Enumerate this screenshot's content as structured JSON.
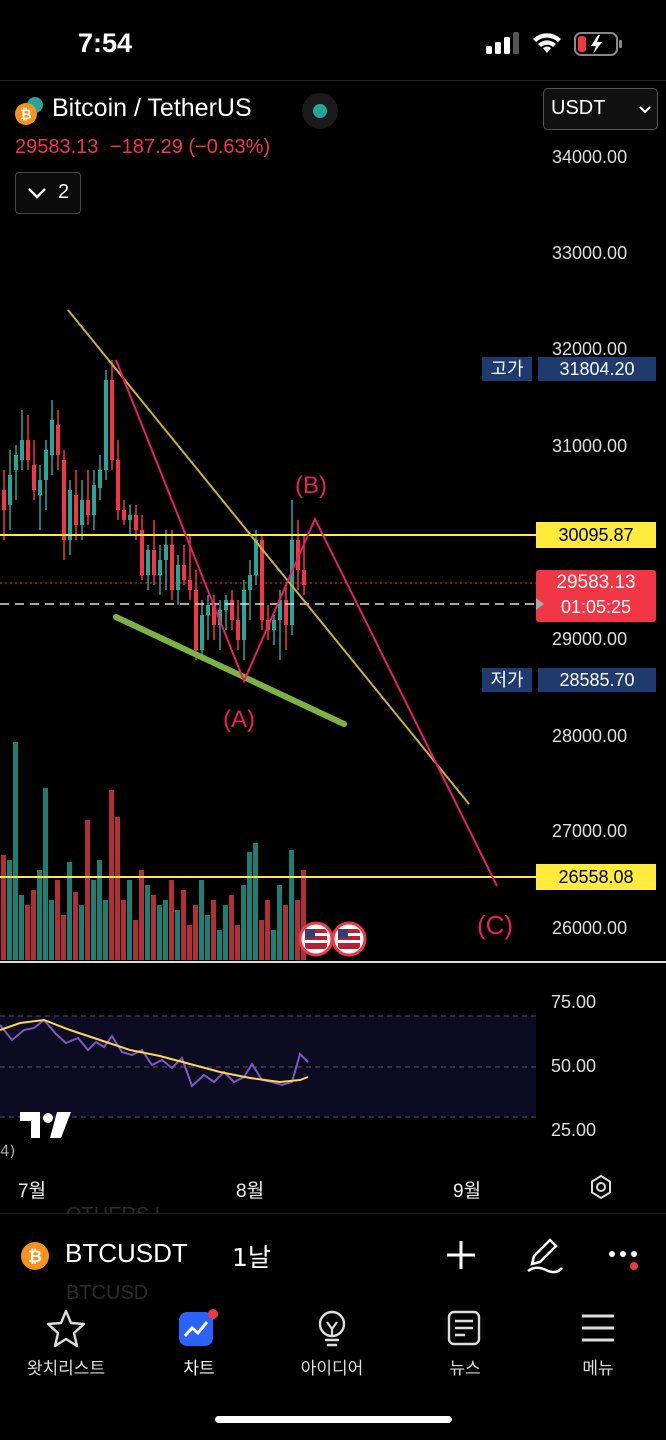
{
  "status": {
    "time": "7:54"
  },
  "header": {
    "title": "Bitcoin / TetherUS",
    "last_price": "29583.13",
    "change": "−187.29 (−0.63%)",
    "indicator_count": "2",
    "currency": "USDT"
  },
  "price_axis": {
    "labels": [
      "34000.00",
      "33000.00",
      "32000.00",
      "31000.00",
      "29000.00",
      "28000.00",
      "27000.00",
      "26000.00"
    ],
    "high_label": "고가",
    "high_value": "31804.20",
    "low_label": "저가",
    "low_value": "28585.70",
    "level_upper": "30095.87",
    "level_lower": "26558.08",
    "current_price": "29583.13",
    "countdown": "01:05:25"
  },
  "wave_labels": {
    "a": "(A)",
    "b": "(B)",
    "c": "(C)"
  },
  "rsi_axis": {
    "labels": [
      "75.00",
      "50.00",
      "25.00"
    ],
    "fragment": "4)"
  },
  "time_axis": {
    "labels": [
      "7월",
      "8월",
      "9월"
    ]
  },
  "watermark": {
    "above": "OTHERS.L",
    "below": "BTCUSD"
  },
  "symbol_bar": {
    "symbol": "BTCUSDT",
    "interval": "1날"
  },
  "tabs": [
    {
      "label": "왓치리스트",
      "icon": "star-icon"
    },
    {
      "label": "차트",
      "icon": "chart-icon"
    },
    {
      "label": "아이디어",
      "icon": "lightbulb-icon"
    },
    {
      "label": "뉴스",
      "icon": "news-icon"
    },
    {
      "label": "메뉴",
      "icon": "menu-icon"
    }
  ],
  "colors": {
    "up": "#26a69a",
    "down": "#f23645",
    "level": "#ffeb3b",
    "accent": "#2962ff"
  }
}
